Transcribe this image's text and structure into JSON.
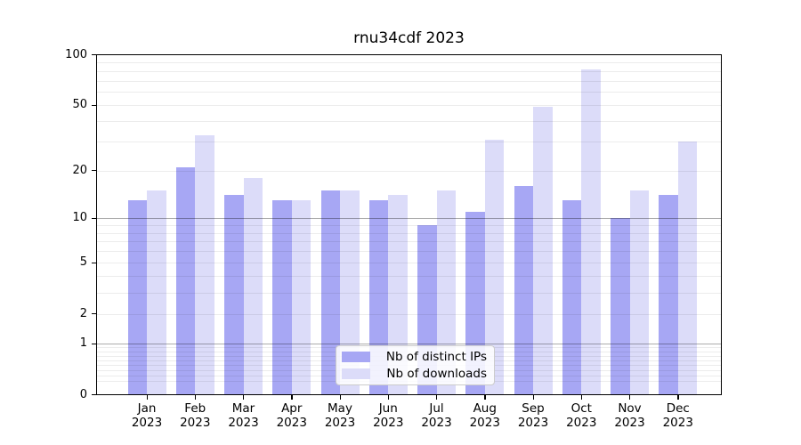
{
  "chart_data": {
    "type": "bar",
    "title": "rnu34cdf 2023",
    "x_categories": [
      "Jan",
      "Feb",
      "Mar",
      "Apr",
      "May",
      "Jun",
      "Jul",
      "Aug",
      "Sep",
      "Oct",
      "Nov",
      "Dec"
    ],
    "x_year": "2023",
    "series": [
      {
        "name": "Nb of distinct IPs",
        "color": "#a7a7f4",
        "values": [
          13,
          21,
          14,
          13,
          15,
          13,
          9,
          11,
          16,
          13,
          10,
          14
        ]
      },
      {
        "name": "Nb of downloads",
        "color": "#dcdcf9",
        "values": [
          15,
          33,
          18,
          13,
          15,
          14,
          15,
          31,
          49,
          82,
          15,
          30
        ]
      }
    ],
    "y_scale": "log1p",
    "ylim": [
      0,
      100
    ],
    "y_ticks": [
      0,
      1,
      2,
      5,
      10,
      20,
      50,
      100
    ],
    "y_tick_labels": [
      "0",
      "1",
      "2",
      "5",
      "10",
      "20",
      "50",
      "100"
    ],
    "major_grid": [
      1,
      10
    ],
    "minor_grid": [
      0.2,
      0.3,
      0.4,
      0.5,
      0.6,
      0.7,
      0.8,
      0.9,
      2,
      3,
      4,
      5,
      6,
      7,
      8,
      9,
      20,
      30,
      40,
      50,
      60,
      70,
      80,
      90
    ],
    "grid": true,
    "legend_position": "lower center"
  }
}
